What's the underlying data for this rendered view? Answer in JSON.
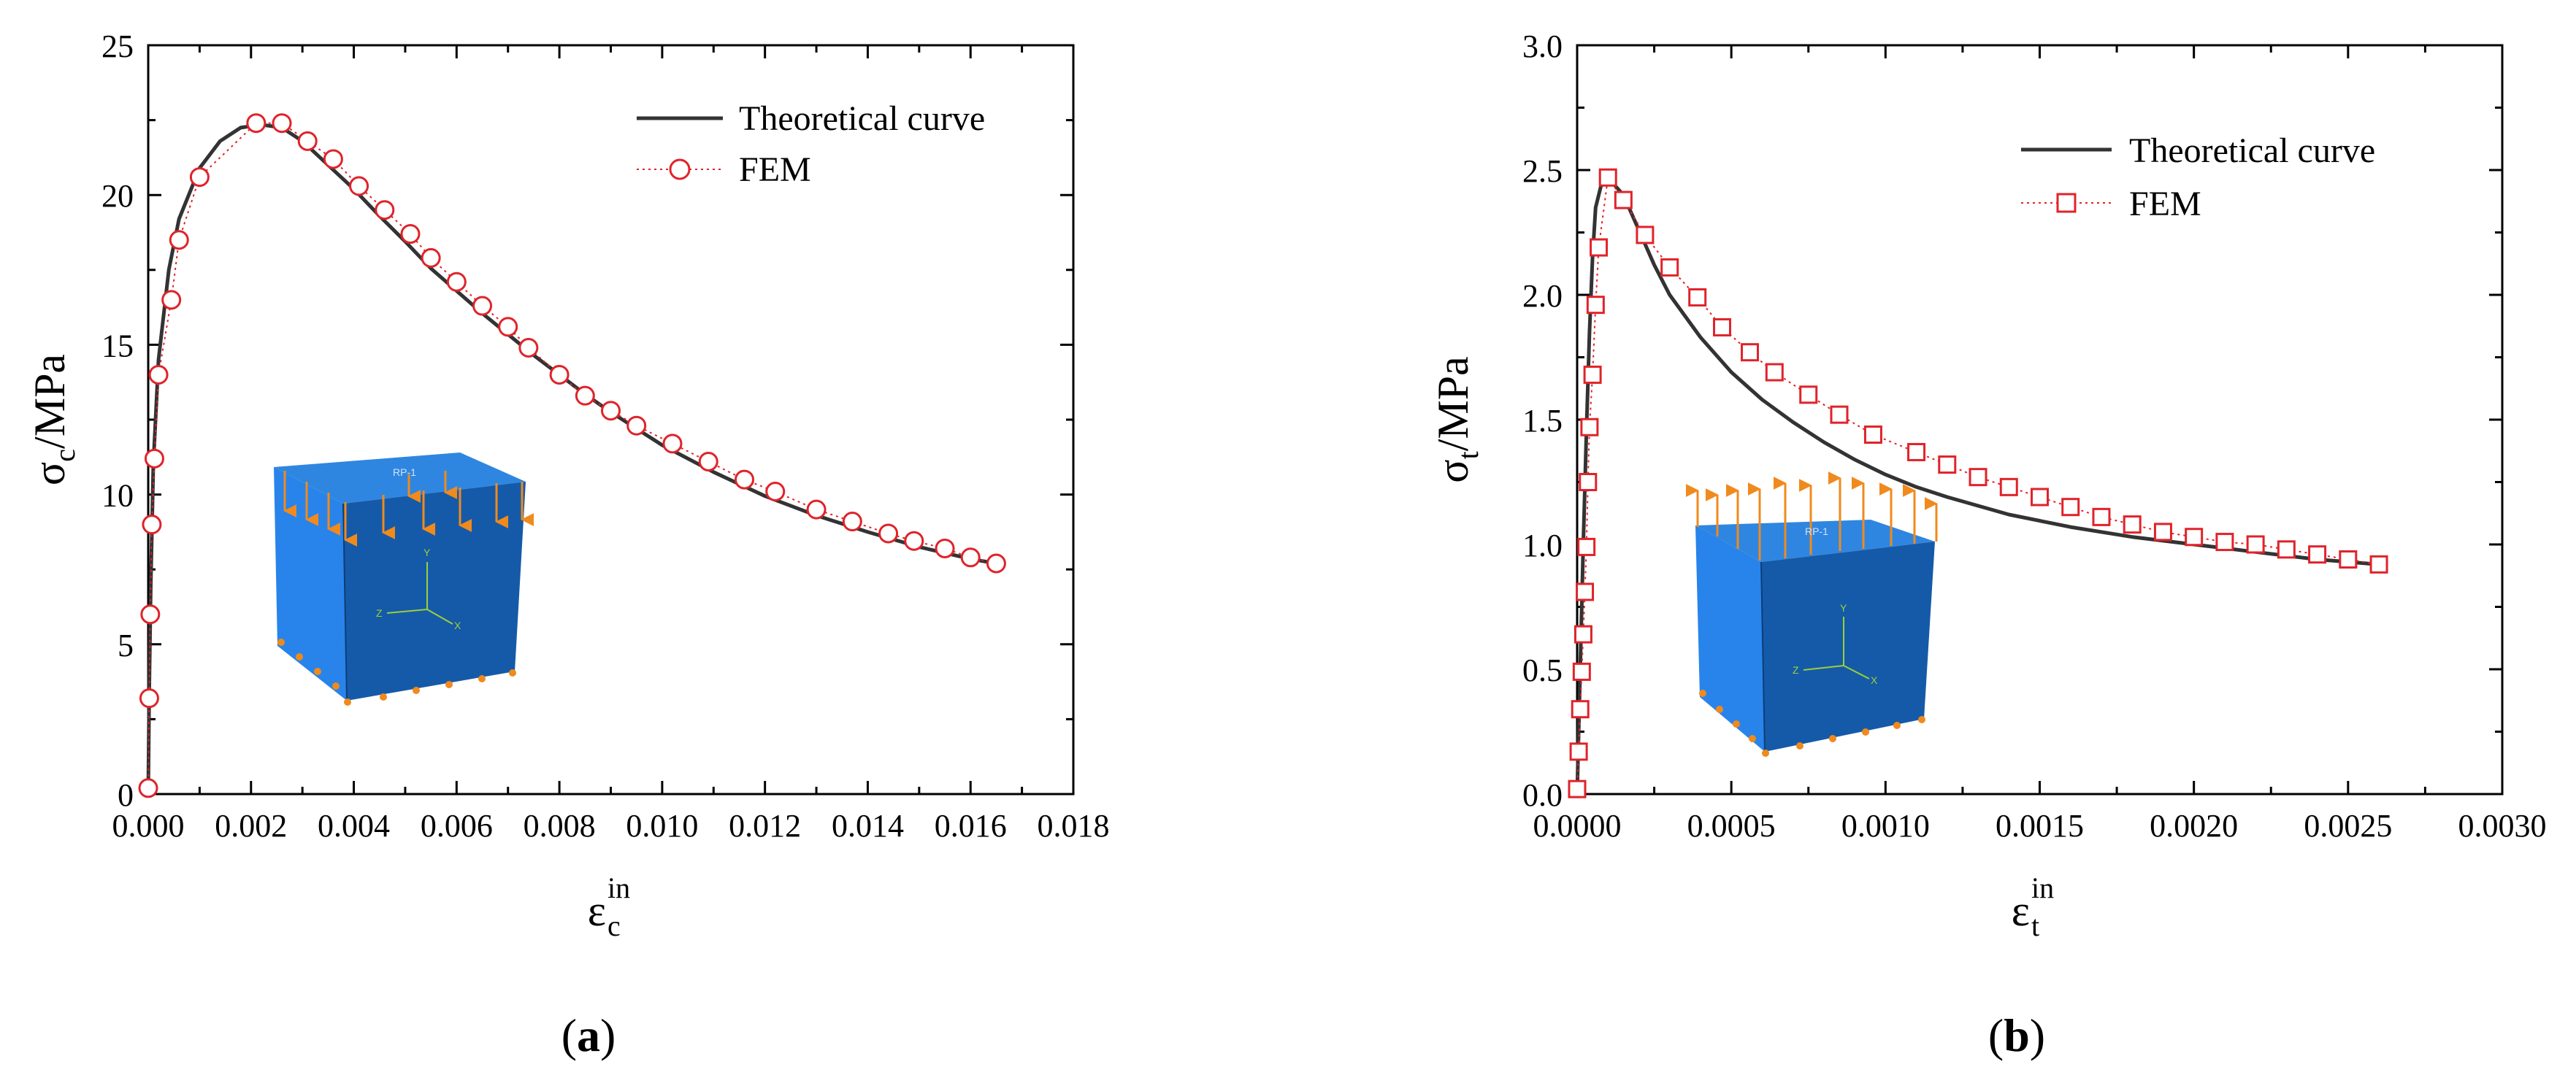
{
  "chart_data": [
    {
      "type": "line",
      "panel": "a",
      "caption": "(a)",
      "caption_letter": "a",
      "ylabel": "σ",
      "ylabel_sub": "c",
      "ylabel_unit": "/MPa",
      "xlabel": "ε",
      "xlabel_sub": "c",
      "xlabel_sup": "in",
      "xlim": [
        0,
        0.018
      ],
      "ylim": [
        0,
        25
      ],
      "xticks": [
        "0.000",
        "0.002",
        "0.004",
        "0.006",
        "0.008",
        "0.010",
        "0.012",
        "0.014",
        "0.016",
        "0.018"
      ],
      "yticks": [
        "0",
        "5",
        "10",
        "15",
        "20",
        "25"
      ],
      "legend": [
        "Theoretical curve",
        "FEM"
      ],
      "legend_position": "top-right",
      "inset": "3D cube model under compressive loading (RP-1, axes x, y, z)",
      "inset_label": "RP-1",
      "axis_letters": [
        "Y",
        "Z",
        "X"
      ],
      "series": [
        {
          "name": "Theoretical curve",
          "style": "solid",
          "color": "#333333",
          "x": [
            0,
            2e-05,
            5e-05,
            0.0001,
            0.0002,
            0.0004,
            0.0006,
            0.001,
            0.0014,
            0.0018,
            0.0022,
            0.0026,
            0.003,
            0.0035,
            0.004,
            0.0045,
            0.005,
            0.0055,
            0.006,
            0.0065,
            0.007,
            0.0075,
            0.008,
            0.0085,
            0.009,
            0.0095,
            0.01,
            0.011,
            0.012,
            0.013,
            0.014,
            0.015,
            0.016,
            0.0165
          ],
          "y": [
            0,
            3.5,
            7.0,
            11.0,
            14.5,
            17.5,
            19.2,
            20.9,
            21.8,
            22.25,
            22.35,
            22.25,
            21.8,
            21.0,
            20.2,
            19.3,
            18.45,
            17.55,
            16.8,
            16.05,
            15.35,
            14.65,
            14.0,
            13.35,
            12.75,
            12.2,
            11.65,
            10.75,
            9.95,
            9.3,
            8.75,
            8.25,
            7.85,
            7.7
          ]
        },
        {
          "name": "FEM",
          "style": "dotted-circle",
          "color": "#e0232a",
          "x": [
            0,
            2e-05,
            4e-05,
            7e-05,
            0.00012,
            0.0002,
            0.00045,
            0.0006,
            0.001,
            0.0021,
            0.0026,
            0.0031,
            0.0036,
            0.0041,
            0.0046,
            0.0051,
            0.0055,
            0.006,
            0.0065,
            0.007,
            0.0074,
            0.008,
            0.0085,
            0.009,
            0.0095,
            0.0102,
            0.0109,
            0.0116,
            0.0122,
            0.013,
            0.0137,
            0.0144,
            0.0149,
            0.0155,
            0.016,
            0.0165
          ],
          "y": [
            0.2,
            3.2,
            6.0,
            9.0,
            11.2,
            14.0,
            16.5,
            18.5,
            20.6,
            22.4,
            22.4,
            21.8,
            21.2,
            20.3,
            19.5,
            18.7,
            17.9,
            17.1,
            16.3,
            15.6,
            14.9,
            14.0,
            13.3,
            12.8,
            12.3,
            11.7,
            11.1,
            10.5,
            10.1,
            9.5,
            9.1,
            8.7,
            8.45,
            8.2,
            7.9,
            7.7
          ]
        }
      ]
    },
    {
      "type": "line",
      "panel": "b",
      "caption": "(b)",
      "caption_letter": "b",
      "ylabel": "σ",
      "ylabel_sub": "t",
      "ylabel_unit": "/MPa",
      "xlabel": "ε",
      "xlabel_sub": "t",
      "xlabel_sup": "in",
      "xlim": [
        0,
        0.003
      ],
      "ylim": [
        0,
        3.0
      ],
      "xticks": [
        "0.0000",
        "0.0005",
        "0.0010",
        "0.0015",
        "0.0020",
        "0.0025",
        "0.0030"
      ],
      "yticks": [
        "0.0",
        "0.5",
        "1.0",
        "1.5",
        "2.0",
        "2.5",
        "3.0"
      ],
      "legend": [
        "Theoretical curve",
        "FEM"
      ],
      "legend_position": "top-right",
      "inset": "3D cube model under tensile loading (RP-1, axes x, y, z)",
      "inset_label": "RP-1",
      "axis_letters": [
        "Y",
        "Z",
        "X"
      ],
      "series": [
        {
          "name": "Theoretical curve",
          "style": "solid",
          "color": "#333333",
          "x": [
            0,
            1e-05,
            2e-05,
            3e-05,
            4e-05,
            5e-05,
            6e-05,
            8e-05,
            0.0001,
            0.00015,
            0.0002,
            0.00025,
            0.0003,
            0.0004,
            0.0005,
            0.0006,
            0.0007,
            0.0008,
            0.0009,
            0.001,
            0.0011,
            0.0012,
            0.0014,
            0.0016,
            0.0018,
            0.002,
            0.0022,
            0.0024,
            0.0026
          ],
          "y": [
            0,
            0.5,
            1.0,
            1.45,
            1.85,
            2.15,
            2.35,
            2.45,
            2.47,
            2.4,
            2.26,
            2.12,
            2.0,
            1.83,
            1.69,
            1.58,
            1.49,
            1.41,
            1.34,
            1.28,
            1.23,
            1.19,
            1.12,
            1.07,
            1.03,
            1.0,
            0.97,
            0.94,
            0.92
          ]
        },
        {
          "name": "FEM",
          "style": "dotted-square",
          "color": "#e0232a",
          "x": [
            0,
            5e-06,
            1e-05,
            1.5e-05,
            2e-05,
            2.5e-05,
            3e-05,
            3.5e-05,
            4e-05,
            5e-05,
            6e-05,
            7e-05,
            0.0001,
            0.00015,
            0.00022,
            0.0003,
            0.00039,
            0.00047,
            0.00056,
            0.00064,
            0.00075,
            0.00085,
            0.00096,
            0.0011,
            0.0012,
            0.0013,
            0.0014,
            0.0015,
            0.0016,
            0.0017,
            0.0018,
            0.0019,
            0.002,
            0.0021,
            0.0022,
            0.0023,
            0.0024,
            0.0025,
            0.0026
          ],
          "y": [
            0.02,
            0.17,
            0.34,
            0.49,
            0.64,
            0.81,
            0.99,
            1.25,
            1.47,
            1.68,
            1.96,
            2.19,
            2.47,
            2.38,
            2.24,
            2.11,
            1.99,
            1.87,
            1.77,
            1.69,
            1.6,
            1.52,
            1.44,
            1.37,
            1.32,
            1.27,
            1.23,
            1.19,
            1.15,
            1.11,
            1.08,
            1.05,
            1.03,
            1.01,
            1.0,
            0.98,
            0.96,
            0.94,
            0.92
          ]
        }
      ]
    }
  ],
  "colors": {
    "axis": "#000000",
    "theory": "#333333",
    "fem": "#e0232a",
    "cube_top": "#2f86e0",
    "cube_front": "#1f7fe6",
    "cube_side": "#1558a6",
    "arrow": "#f08a1d"
  }
}
